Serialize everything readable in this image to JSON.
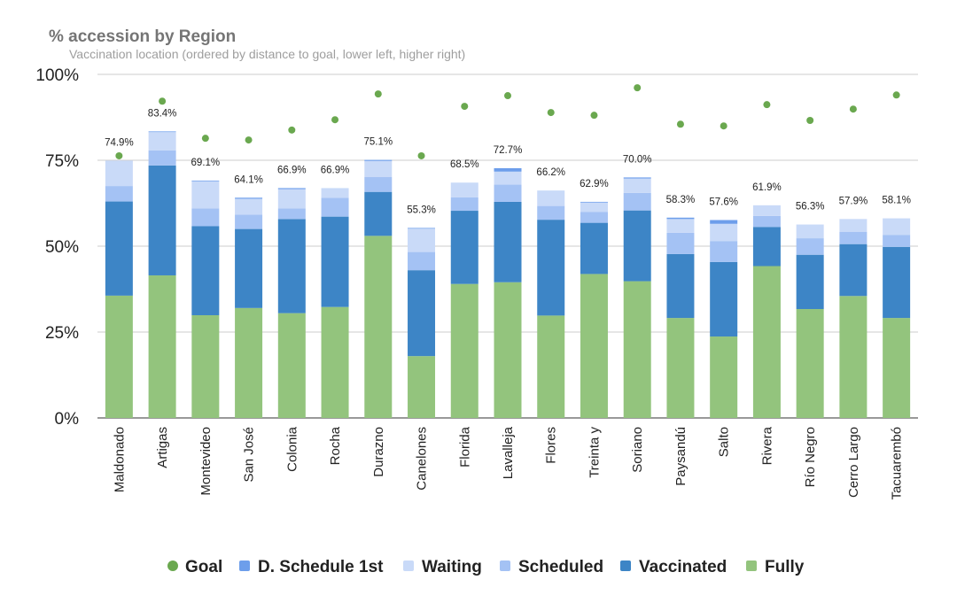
{
  "chart_data": {
    "type": "bar",
    "stacked": true,
    "title": "% accession by Region",
    "subtitle": "Vaccination location (ordered by distance to goal, lower left, higher right)",
    "xlabel": "",
    "ylabel": "",
    "ylim": [
      0,
      100
    ],
    "y_ticks": [
      "0%",
      "25%",
      "50%",
      "75%",
      "100%"
    ],
    "grid": true,
    "legend_position": "bottom",
    "categories": [
      "Maldonado",
      "Artigas",
      "Montevideo",
      "San José",
      "Colonia",
      "Rocha",
      "Durazno",
      "Canelones",
      "Florida",
      "Lavalleja",
      "Flores",
      "Treinta y",
      "Soriano",
      "Paysandú",
      "Salto",
      "Rivera",
      "Río Negro",
      "Cerro Largo",
      "Tacuarembó"
    ],
    "totals_labels": [
      "74.9%",
      "83.4%",
      "69.1%",
      "64.1%",
      "66.9%",
      "66.9%",
      "75.1%",
      "55.3%",
      "68.5%",
      "72.7%",
      "66.2%",
      "62.9%",
      "70.0%",
      "58.3%",
      "57.6%",
      "61.9%",
      "56.3%",
      "57.9%",
      "58.1%"
    ],
    "legend": [
      "Goal",
      "D. Schedule 1st",
      "Waiting",
      "Scheduled",
      "Vaccinated",
      "Fully"
    ],
    "series": [
      {
        "name": "Fully",
        "color": "#93c47d",
        "values": [
          35.6,
          41.5,
          29.9,
          32.0,
          30.5,
          32.3,
          53.0,
          18.0,
          39.0,
          39.5,
          29.8,
          41.9,
          39.8,
          29.1,
          23.7,
          44.2,
          31.7,
          35.5,
          29.1
        ]
      },
      {
        "name": "Vaccinated",
        "color": "#3d85c6",
        "values": [
          27.4,
          32.0,
          25.9,
          23.0,
          27.4,
          26.3,
          12.8,
          25.0,
          21.3,
          23.4,
          27.9,
          14.9,
          20.6,
          18.6,
          21.7,
          11.4,
          15.8,
          15.1,
          20.7
        ]
      },
      {
        "name": "Scheduled",
        "color": "#a4c2f4",
        "values": [
          4.5,
          4.4,
          5.2,
          4.2,
          3.1,
          5.5,
          4.3,
          5.3,
          3.9,
          5.0,
          4.0,
          3.2,
          5.1,
          6.2,
          6.1,
          3.2,
          4.8,
          3.6,
          3.5
        ]
      },
      {
        "name": "Waiting",
        "color": "#c9daf8",
        "values": [
          7.4,
          5.3,
          7.9,
          4.6,
          5.6,
          2.8,
          4.7,
          6.8,
          4.3,
          3.8,
          4.5,
          2.7,
          4.2,
          4.0,
          5.0,
          3.1,
          4.0,
          3.7,
          4.8
        ]
      },
      {
        "name": "D. Schedule 1st",
        "color": "#6d9eeb",
        "values": [
          0.0,
          0.2,
          0.2,
          0.3,
          0.3,
          0.0,
          0.3,
          0.2,
          0.0,
          1.0,
          0.0,
          0.2,
          0.3,
          0.4,
          1.1,
          0.0,
          0.0,
          0.0,
          0.0
        ]
      }
    ],
    "goal": {
      "name": "Goal",
      "color": "#6aa84f",
      "values": [
        76.3,
        92.2,
        81.4,
        80.9,
        83.8,
        86.8,
        94.3,
        76.3,
        90.7,
        93.8,
        88.9,
        88.1,
        96.1,
        85.5,
        85.0,
        91.2,
        86.6,
        89.9,
        94.0
      ]
    }
  }
}
